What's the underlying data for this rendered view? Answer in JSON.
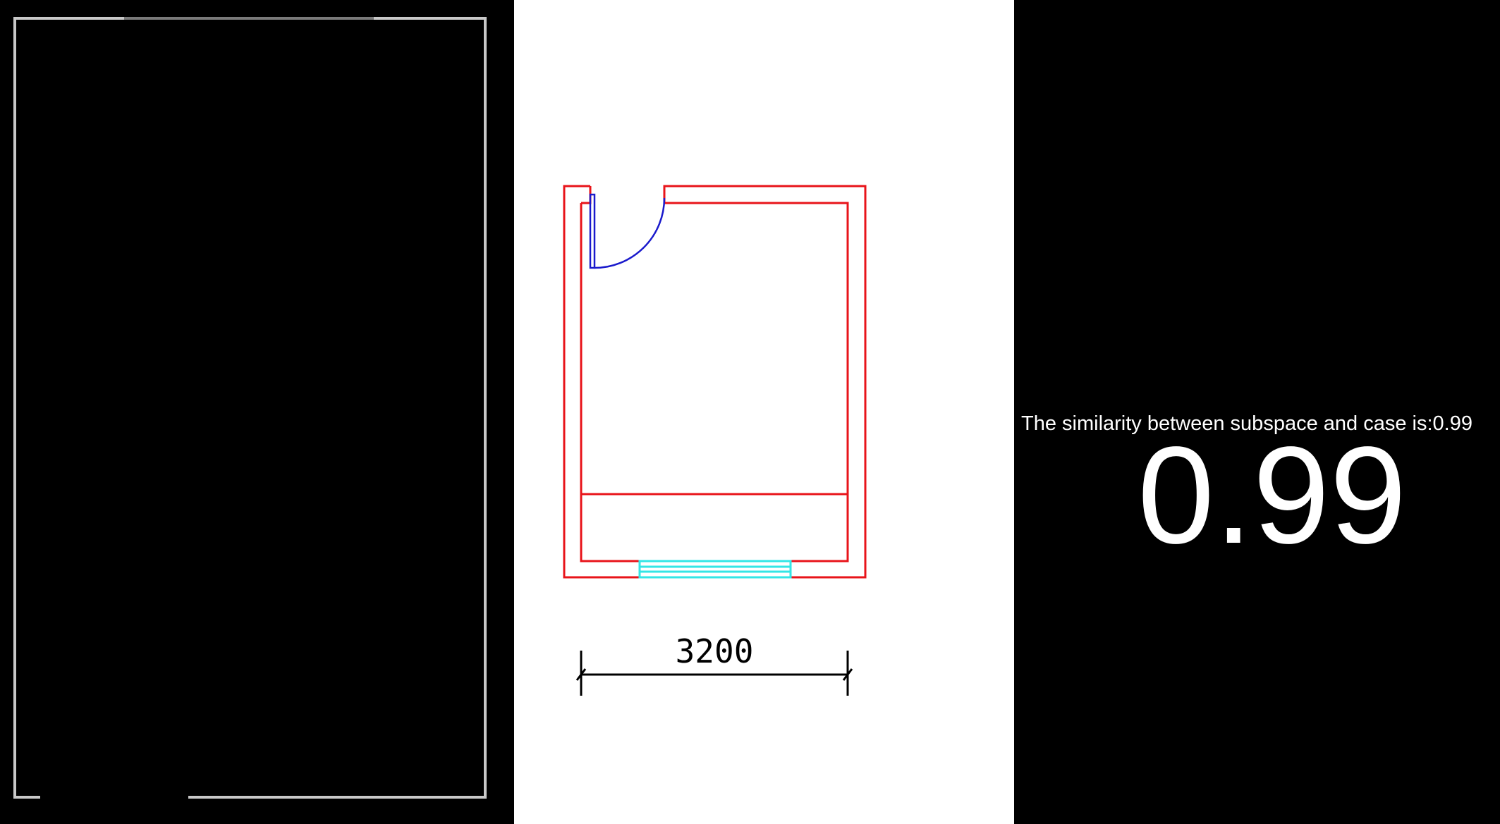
{
  "panels": {
    "subspace": {
      "background": "#000000",
      "outline_color": "#c8c8c8"
    },
    "case": {
      "background": "#ffffff",
      "wall_color": "#e8141a",
      "door_color": "#1a1acc",
      "window_color": "#33e6e6",
      "dimension_color": "#000000",
      "dimension_label": "3200"
    },
    "score": {
      "background": "#000000",
      "caption": "The similarity between subspace and case is:0.99",
      "value_display": "0.99",
      "text_color": "#ffffff"
    }
  }
}
